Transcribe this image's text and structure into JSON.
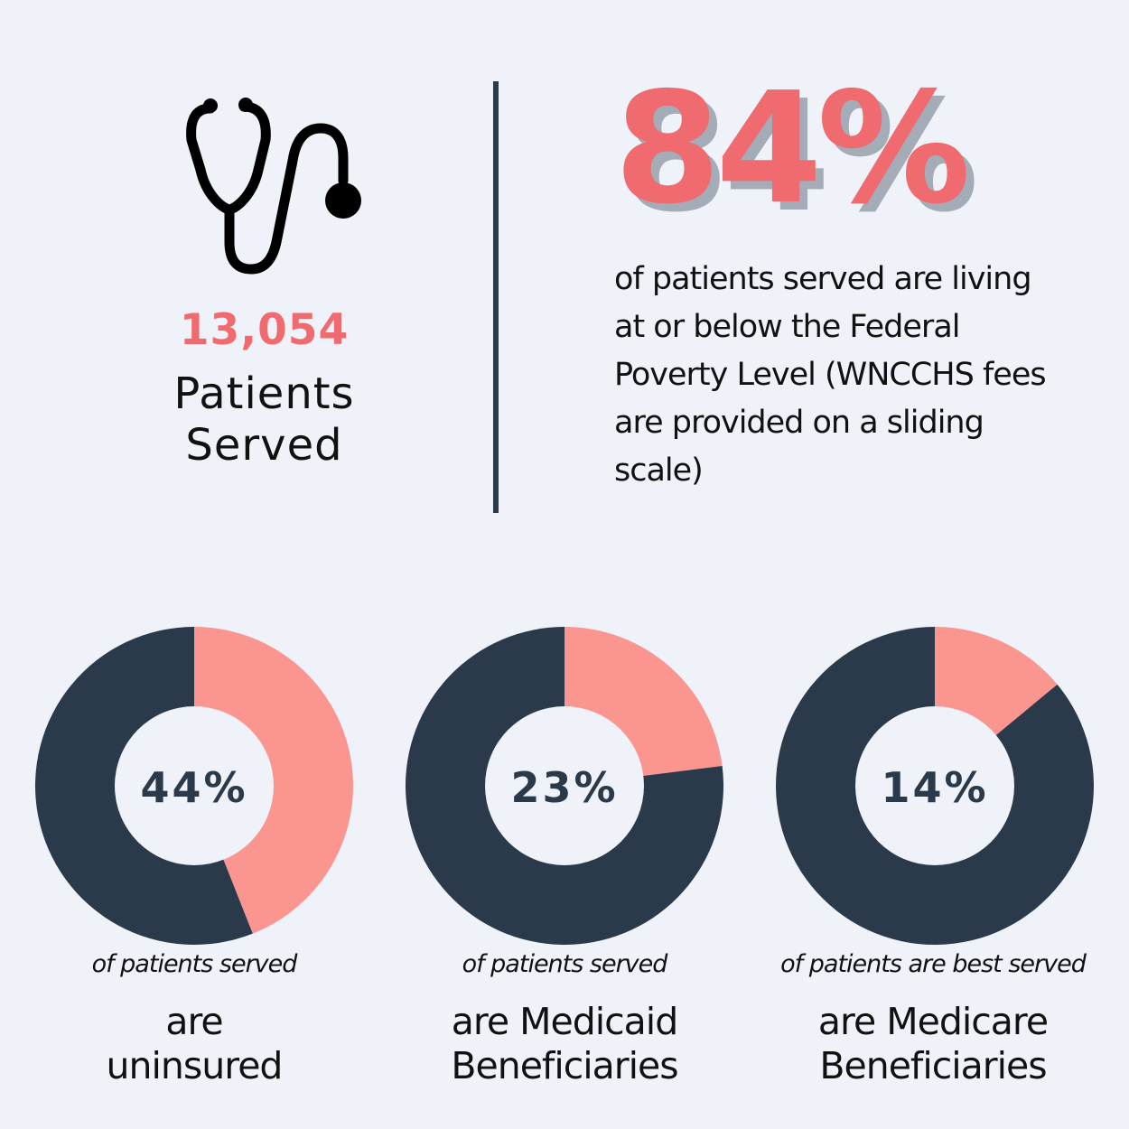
{
  "hero": {
    "patients_count": "13,054",
    "patients_label_line1": "Patients",
    "patients_label_line2": "Served",
    "icon": "stethoscope-icon"
  },
  "poverty": {
    "percent": "84%",
    "text_line1": "of patients served are living",
    "text_line2": "at or below  the Federal",
    "text_line3": "Poverty Level (WNCCHS fees",
    "text_line4": "are provided on a sliding",
    "text_line5": "scale)"
  },
  "colors": {
    "background": "#eff2f9",
    "accent": "#ef6b6f",
    "slice_highlight": "#fa958f",
    "slice_base": "#2b3a4a",
    "text": "#111111"
  },
  "chart_data": [
    {
      "type": "pie",
      "style": "donut",
      "label": "44%",
      "values": [
        44,
        56
      ],
      "caption": "of patients served",
      "desc_line1": "are",
      "desc_line2": "uninsured"
    },
    {
      "type": "pie",
      "style": "donut",
      "label": "23%",
      "values": [
        23,
        77
      ],
      "caption": "of patients served",
      "desc_line1": "are Medicaid",
      "desc_line2": "Beneficiaries"
    },
    {
      "type": "pie",
      "style": "donut",
      "label": "14%",
      "values": [
        14,
        86
      ],
      "caption": "of patients are best served",
      "desc_line1": "are Medicare",
      "desc_line2": "Beneficiaries"
    }
  ]
}
